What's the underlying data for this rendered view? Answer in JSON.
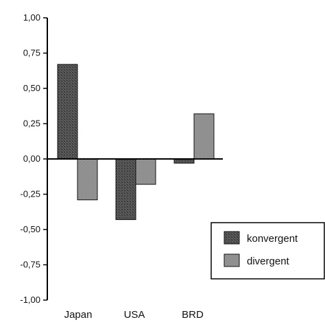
{
  "chart_data": {
    "type": "bar",
    "categories": [
      "Japan",
      "USA",
      "BRD"
    ],
    "series": [
      {
        "name": "konvergent",
        "values": [
          0.67,
          -0.43,
          -0.03
        ],
        "color": "#3a3a3a",
        "pattern": "dark-stipple"
      },
      {
        "name": "divergent",
        "values": [
          -0.29,
          -0.18,
          0.32
        ],
        "color": "#bdbdbd",
        "pattern": "checker"
      }
    ],
    "ylim": [
      -1.0,
      1.0
    ],
    "yticks": [
      "1,00",
      "0,75",
      "0,50",
      "0,25",
      "0,00",
      "-0,25",
      "-0,50",
      "-0,75",
      "-1,00"
    ],
    "ytick_values": [
      1.0,
      0.75,
      0.5,
      0.25,
      0.0,
      -0.25,
      -0.5,
      -0.75,
      -1.0
    ],
    "legend_position": "right",
    "grid": false,
    "title": "",
    "xlabel": "",
    "ylabel": ""
  }
}
